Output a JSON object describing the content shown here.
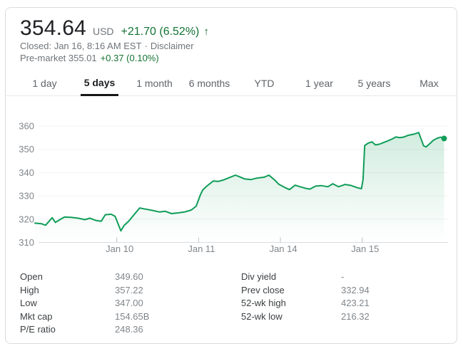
{
  "header": {
    "price": "354.64",
    "currency": "USD",
    "change": "+21.70 (6.52%)",
    "arrow": "↑",
    "closed_text": "Closed: Jan 16, 8:16 AM EST",
    "separator": "·",
    "disclaimer": "Disclaimer",
    "premarket_text": "Pre-market 355.01",
    "premarket_change": "+0.37 (0.10%)"
  },
  "tabs": {
    "items": [
      {
        "label": "1 day",
        "selected": false
      },
      {
        "label": "5 days",
        "selected": true
      },
      {
        "label": "1 month",
        "selected": false
      },
      {
        "label": "6 months",
        "selected": false
      },
      {
        "label": "YTD",
        "selected": false
      },
      {
        "label": "1 year",
        "selected": false
      },
      {
        "label": "5 years",
        "selected": false
      },
      {
        "label": "Max",
        "selected": false
      }
    ]
  },
  "chart_data": {
    "type": "line",
    "title": "5 day price history",
    "xlabel": "",
    "ylabel": "",
    "x_unit": "trading session (0 = Jan 9 open, 1 session per day)",
    "xlim": [
      0,
      5.06
    ],
    "ylim": [
      310,
      360
    ],
    "grid": true,
    "y_ticks": [
      310,
      320,
      330,
      340,
      350,
      360
    ],
    "x_ticks": [
      {
        "pos": 1,
        "label": "Jan 10"
      },
      {
        "pos": 2,
        "label": "Jan 11"
      },
      {
        "pos": 3,
        "label": "Jan 14"
      },
      {
        "pos": 4,
        "label": "Jan 15"
      }
    ],
    "series": [
      {
        "name": "price",
        "last_value": 354.64,
        "points": [
          [
            0.0,
            318.3
          ],
          [
            0.08,
            318.0
          ],
          [
            0.13,
            317.4
          ],
          [
            0.21,
            320.6
          ],
          [
            0.25,
            318.6
          ],
          [
            0.31,
            319.9
          ],
          [
            0.36,
            320.9
          ],
          [
            0.44,
            320.8
          ],
          [
            0.53,
            320.4
          ],
          [
            0.61,
            319.8
          ],
          [
            0.67,
            320.4
          ],
          [
            0.75,
            319.4
          ],
          [
            0.81,
            319.1
          ],
          [
            0.86,
            321.9
          ],
          [
            0.93,
            322.1
          ],
          [
            0.98,
            321.2
          ],
          [
            1.05,
            315.0
          ],
          [
            1.09,
            317.3
          ],
          [
            1.15,
            319.3
          ],
          [
            1.21,
            321.9
          ],
          [
            1.28,
            324.8
          ],
          [
            1.35,
            324.3
          ],
          [
            1.43,
            323.8
          ],
          [
            1.52,
            323.1
          ],
          [
            1.59,
            323.4
          ],
          [
            1.67,
            322.4
          ],
          [
            1.75,
            322.7
          ],
          [
            1.83,
            323.1
          ],
          [
            1.91,
            323.9
          ],
          [
            1.97,
            325.6
          ],
          [
            2.02,
            330.3
          ],
          [
            2.05,
            332.5
          ],
          [
            2.1,
            334.2
          ],
          [
            2.18,
            336.4
          ],
          [
            2.24,
            336.2
          ],
          [
            2.3,
            336.8
          ],
          [
            2.36,
            337.6
          ],
          [
            2.45,
            338.9
          ],
          [
            2.5,
            338.2
          ],
          [
            2.56,
            337.3
          ],
          [
            2.64,
            337.0
          ],
          [
            2.71,
            337.6
          ],
          [
            2.8,
            338.0
          ],
          [
            2.86,
            338.9
          ],
          [
            2.93,
            336.8
          ],
          [
            2.98,
            335.0
          ],
          [
            3.06,
            333.5
          ],
          [
            3.11,
            332.7
          ],
          [
            3.18,
            334.6
          ],
          [
            3.24,
            333.9
          ],
          [
            3.31,
            333.2
          ],
          [
            3.36,
            332.9
          ],
          [
            3.43,
            334.2
          ],
          [
            3.5,
            334.4
          ],
          [
            3.58,
            333.9
          ],
          [
            3.64,
            335.2
          ],
          [
            3.71,
            333.9
          ],
          [
            3.79,
            334.9
          ],
          [
            3.86,
            334.5
          ],
          [
            3.94,
            333.5
          ],
          [
            3.99,
            333.1
          ],
          [
            4.01,
            337.0
          ],
          [
            4.03,
            351.6
          ],
          [
            4.07,
            352.6
          ],
          [
            4.12,
            353.2
          ],
          [
            4.16,
            351.9
          ],
          [
            4.21,
            352.2
          ],
          [
            4.26,
            352.9
          ],
          [
            4.31,
            353.6
          ],
          [
            4.37,
            354.5
          ],
          [
            4.41,
            355.3
          ],
          [
            4.46,
            355.0
          ],
          [
            4.51,
            355.3
          ],
          [
            4.56,
            356.0
          ],
          [
            4.63,
            356.5
          ],
          [
            4.69,
            357.2
          ],
          [
            4.75,
            351.5
          ],
          [
            4.78,
            351.0
          ],
          [
            4.83,
            352.6
          ],
          [
            4.87,
            353.9
          ],
          [
            4.92,
            354.8
          ],
          [
            4.96,
            355.2
          ],
          [
            5.0,
            354.64
          ]
        ]
      }
    ],
    "legend": []
  },
  "key_stats": {
    "left": [
      {
        "label": "Open",
        "value": "349.60"
      },
      {
        "label": "High",
        "value": "357.22"
      },
      {
        "label": "Low",
        "value": "347.00"
      },
      {
        "label": "Mkt cap",
        "value": "154.65B"
      },
      {
        "label": "P/E ratio",
        "value": "248.36"
      }
    ],
    "right": [
      {
        "label": "Div yield",
        "value": "-"
      },
      {
        "label": "Prev close",
        "value": "332.94"
      },
      {
        "label": "52-wk high",
        "value": "423.21"
      },
      {
        "label": "52-wk low",
        "value": "216.32"
      }
    ]
  },
  "colors": {
    "green_line": "#0f9d58",
    "green_text": "#137333",
    "text_primary": "#202124",
    "text_secondary": "#70757a",
    "axis_label": "#80868b",
    "grid": "#f2f2f2",
    "axis": "#dadce0",
    "tick": "#bdc1c6",
    "fill_top": "rgba(15,157,88,0.20)",
    "fill_bottom": "rgba(15,157,88,0)"
  }
}
